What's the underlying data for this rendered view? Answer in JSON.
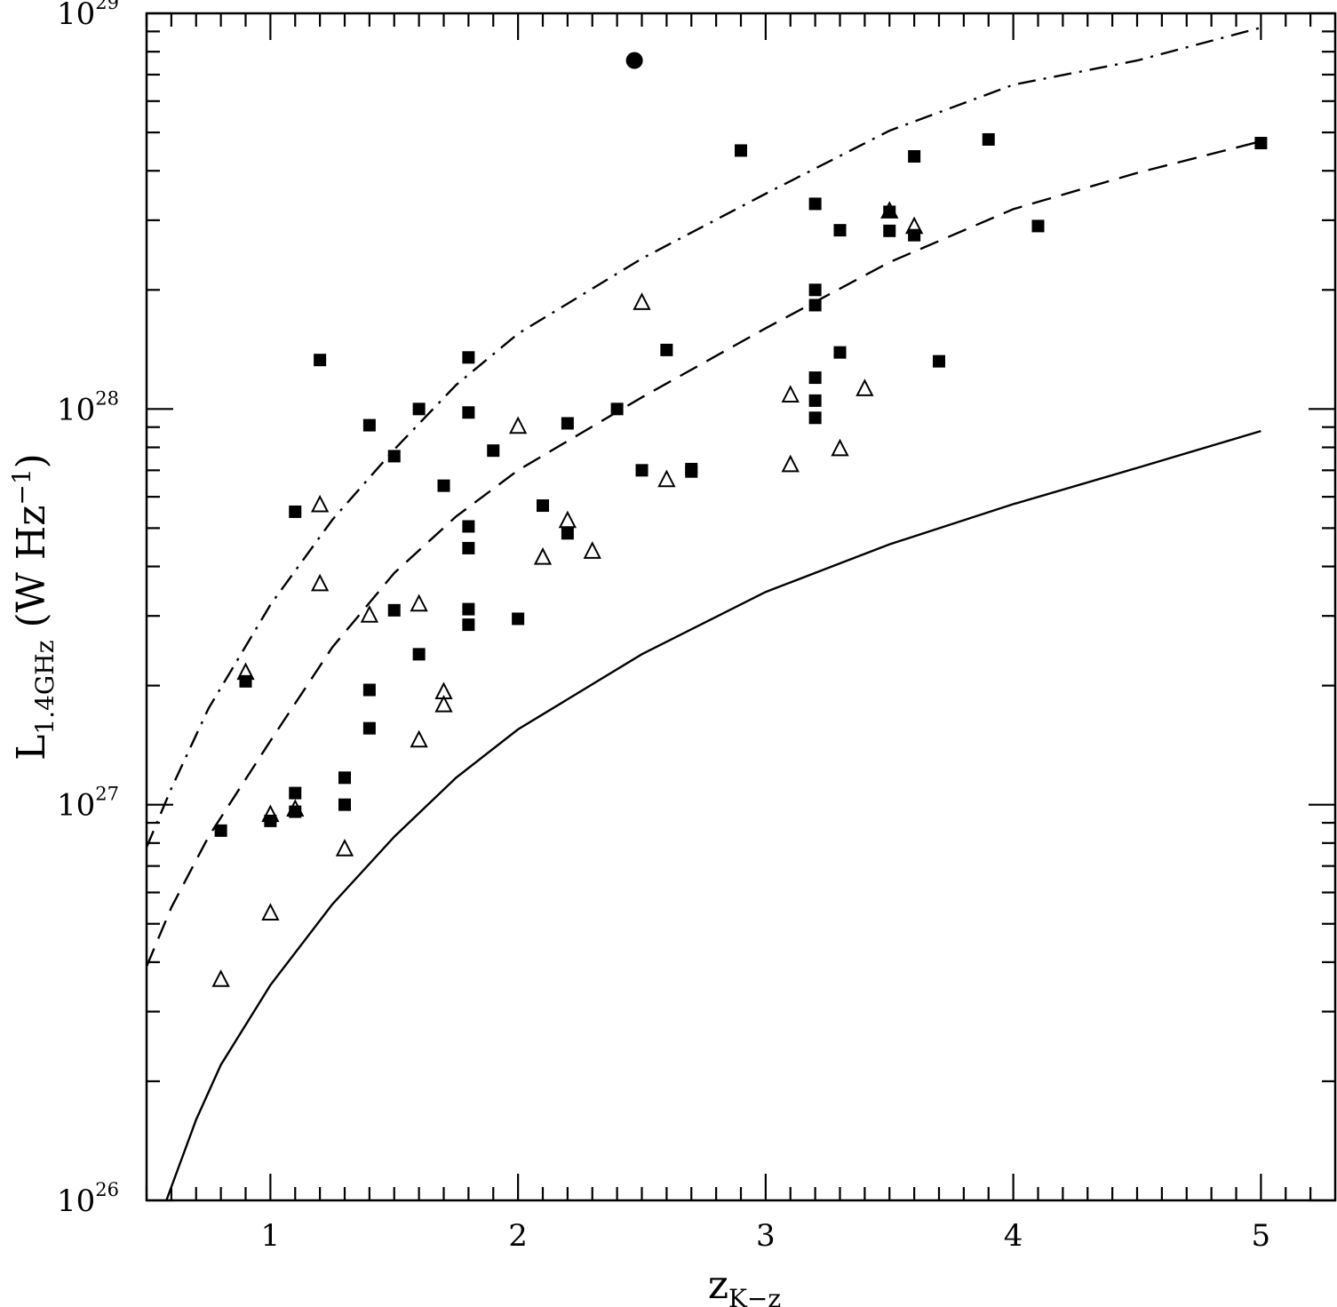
{
  "chart_data": {
    "type": "scatter",
    "title": "",
    "xlabel": {
      "main": "z",
      "sub": "K−z"
    },
    "ylabel": {
      "main": "L",
      "sub": "1.4GHz",
      "rest": " (W Hz",
      "exp": "−1",
      "close": ")"
    },
    "x_range": [
      0.5,
      5.3
    ],
    "y_range_log10": [
      26,
      29
    ],
    "y_scale": "log",
    "x_ticks": [
      "1",
      "2",
      "3",
      "4",
      "5"
    ],
    "y_ticks": [
      {
        "base": "10",
        "exp": "26"
      },
      {
        "base": "10",
        "exp": "27"
      },
      {
        "base": "10",
        "exp": "28"
      },
      {
        "base": "10",
        "exp": "29"
      }
    ],
    "series": [
      {
        "name": "filled squares",
        "marker": "filled-square",
        "points": [
          [
            0.8,
            8.6e+26
          ],
          [
            0.9,
            2.05e+27
          ],
          [
            1.0,
            9.1e+26
          ],
          [
            1.1,
            1.07e+27
          ],
          [
            1.1,
            9.6e+26
          ],
          [
            1.2,
            1.33e+28
          ],
          [
            1.1,
            5.5e+27
          ],
          [
            1.3,
            1.17e+27
          ],
          [
            1.3,
            1e+27
          ],
          [
            1.4,
            1.56e+27
          ],
          [
            1.4,
            1.95e+27
          ],
          [
            1.4,
            9.1e+27
          ],
          [
            1.5,
            7.6e+27
          ],
          [
            1.5,
            3.1e+27
          ],
          [
            1.6,
            2.4e+27
          ],
          [
            1.6,
            1e+28
          ],
          [
            1.7,
            6.4e+27
          ],
          [
            1.8,
            9.8e+27
          ],
          [
            1.8,
            1.35e+28
          ],
          [
            1.8,
            5.05e+27
          ],
          [
            1.8,
            4.45e+27
          ],
          [
            1.8,
            3.12e+27
          ],
          [
            1.8,
            2.85e+27
          ],
          [
            1.9,
            7.85e+27
          ],
          [
            2.0,
            2.95e+27
          ],
          [
            2.1,
            5.7e+27
          ],
          [
            2.2,
            4.85e+27
          ],
          [
            2.2,
            9.2e+27
          ],
          [
            2.4,
            1e+28
          ],
          [
            2.5,
            7e+27
          ],
          [
            2.6,
            1.41e+28
          ],
          [
            2.7,
            7.05e+27
          ],
          [
            2.7,
            6.95e+27
          ],
          [
            2.9,
            4.5e+28
          ],
          [
            3.2,
            3.3e+28
          ],
          [
            3.2,
            2e+28
          ],
          [
            3.2,
            1.83e+28
          ],
          [
            3.2,
            1.2e+28
          ],
          [
            3.2,
            1.05e+28
          ],
          [
            3.2,
            9.5e+27
          ],
          [
            3.3,
            1.39e+28
          ],
          [
            3.3,
            2.83e+28
          ],
          [
            3.5,
            3.15e+28
          ],
          [
            3.5,
            2.82e+28
          ],
          [
            3.6,
            2.75e+28
          ],
          [
            3.6,
            4.35e+28
          ],
          [
            3.7,
            1.32e+28
          ],
          [
            3.9,
            4.8e+28
          ],
          [
            4.1,
            2.9e+28
          ],
          [
            5.0,
            4.7e+28
          ]
        ]
      },
      {
        "name": "open triangles",
        "marker": "open-triangle",
        "points": [
          [
            0.8,
            3.6e+26
          ],
          [
            0.9,
            2.15e+27
          ],
          [
            1.0,
            9.4e+26
          ],
          [
            1.0,
            5.3e+26
          ],
          [
            1.1,
            9.7e+26
          ],
          [
            1.2,
            5.7e+27
          ],
          [
            1.2,
            3.6e+27
          ],
          [
            1.3,
            7.7e+26
          ],
          [
            1.4,
            3e+27
          ],
          [
            1.6,
            3.2e+27
          ],
          [
            1.6,
            1.45e+27
          ],
          [
            1.7,
            1.92e+27
          ],
          [
            1.7,
            1.78e+27
          ],
          [
            2.0,
            9e+27
          ],
          [
            2.1,
            4.2e+27
          ],
          [
            2.2,
            5.2e+27
          ],
          [
            2.3,
            4.35e+27
          ],
          [
            2.5,
            1.85e+28
          ],
          [
            2.6,
            6.6e+27
          ],
          [
            3.1,
            1.08e+28
          ],
          [
            3.1,
            7.2e+27
          ],
          [
            3.3,
            7.9e+27
          ],
          [
            3.4,
            1.12e+28
          ],
          [
            3.5,
            3.15e+28
          ],
          [
            3.6,
            2.88e+28
          ]
        ]
      },
      {
        "name": "filled circle",
        "marker": "filled-circle",
        "points": [
          [
            2.47,
            7.6e+28
          ]
        ]
      }
    ],
    "curves": [
      {
        "name": "solid",
        "style": "solid",
        "points": [
          [
            0.58,
            1e+26
          ],
          [
            0.7,
            1.6e+26
          ],
          [
            0.8,
            2.2e+26
          ],
          [
            1.0,
            3.5e+26
          ],
          [
            1.25,
            5.6e+26
          ],
          [
            1.5,
            8.3e+26
          ],
          [
            1.75,
            1.17e+27
          ],
          [
            2.0,
            1.55e+27
          ],
          [
            2.5,
            2.4e+27
          ],
          [
            3.0,
            3.45e+27
          ],
          [
            3.5,
            4.55e+27
          ],
          [
            4.0,
            5.75e+27
          ],
          [
            4.5,
            7.1e+27
          ],
          [
            5.0,
            8.8e+27
          ]
        ]
      },
      {
        "name": "dashed",
        "style": "dashed",
        "points": [
          [
            0.5,
            3.9e+26
          ],
          [
            0.6,
            5.5e+26
          ],
          [
            0.75,
            8.3e+26
          ],
          [
            1.0,
            1.45e+27
          ],
          [
            1.25,
            2.5e+27
          ],
          [
            1.5,
            3.85e+27
          ],
          [
            1.75,
            5.35e+27
          ],
          [
            2.0,
            7e+27
          ],
          [
            2.5,
            1.07e+28
          ],
          [
            3.0,
            1.6e+28
          ],
          [
            3.5,
            2.35e+28
          ],
          [
            4.0,
            3.2e+28
          ],
          [
            4.5,
            3.95e+28
          ],
          [
            5.0,
            4.75e+28
          ]
        ]
      },
      {
        "name": "dot-dashed",
        "style": "dash-dot",
        "points": [
          [
            0.5,
            7.8e+26
          ],
          [
            0.6,
            1.1e+27
          ],
          [
            0.75,
            1.75e+27
          ],
          [
            1.0,
            3.2e+27
          ],
          [
            1.25,
            5.25e+27
          ],
          [
            1.5,
            7.9e+27
          ],
          [
            1.75,
            1.15e+28
          ],
          [
            2.0,
            1.55e+28
          ],
          [
            2.5,
            2.4e+28
          ],
          [
            3.0,
            3.5e+28
          ],
          [
            3.5,
            5.05e+28
          ],
          [
            4.0,
            6.6e+28
          ],
          [
            4.5,
            7.6e+28
          ],
          [
            5.0,
            9.2e+28
          ]
        ]
      }
    ],
    "grid": false,
    "legend": "none"
  }
}
